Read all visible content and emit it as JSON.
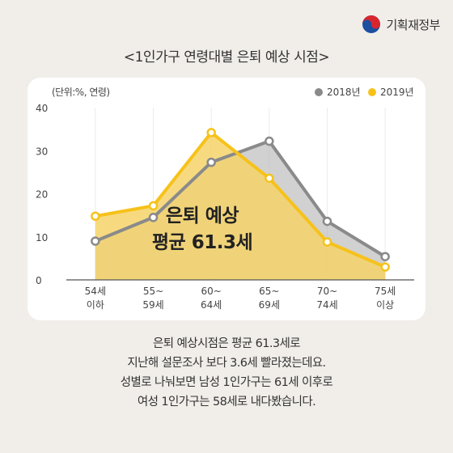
{
  "header": {
    "org_name": "기획재정부",
    "logo_icon": "taegeuk-emblem-icon",
    "title": "<1인가구 연령대별 은퇴 예상 시점>"
  },
  "chart_data": {
    "type": "area",
    "unit_label": "(단위:%, 연령)",
    "categories": [
      [
        "54세",
        "이하"
      ],
      [
        "55~",
        "59세"
      ],
      [
        "60~",
        "64세"
      ],
      [
        "65~",
        "69세"
      ],
      [
        "70~",
        "74세"
      ],
      [
        "75세",
        "이상"
      ]
    ],
    "series": [
      {
        "name": "2018년",
        "color": "#8a8a8a",
        "fill": "#b3b3b3",
        "values": [
          9.0,
          14.5,
          27.3,
          32.2,
          13.6,
          5.4
        ]
      },
      {
        "name": "2019년",
        "color": "#f6c21a",
        "fill": "#f6d36a",
        "values": [
          14.8,
          17.2,
          34.2,
          23.6,
          8.8,
          3.0
        ]
      }
    ],
    "ylim": [
      0,
      40
    ],
    "yticks": [
      0,
      10,
      20,
      30,
      40
    ],
    "legend_position": "top-right",
    "annotation": [
      "은퇴 예상",
      "평균 61.3세"
    ],
    "grid": "vertical-light"
  },
  "body": {
    "lines": [
      "은퇴 예상시점은 평균 61.3세로",
      "지난해 설문조사 보다 3.6세 빨라졌는데요.",
      "성별로 나눠보면 남성 1인가구는 61세 이후로",
      "여성 1인가구는 58세로 내다봤습니다."
    ]
  }
}
